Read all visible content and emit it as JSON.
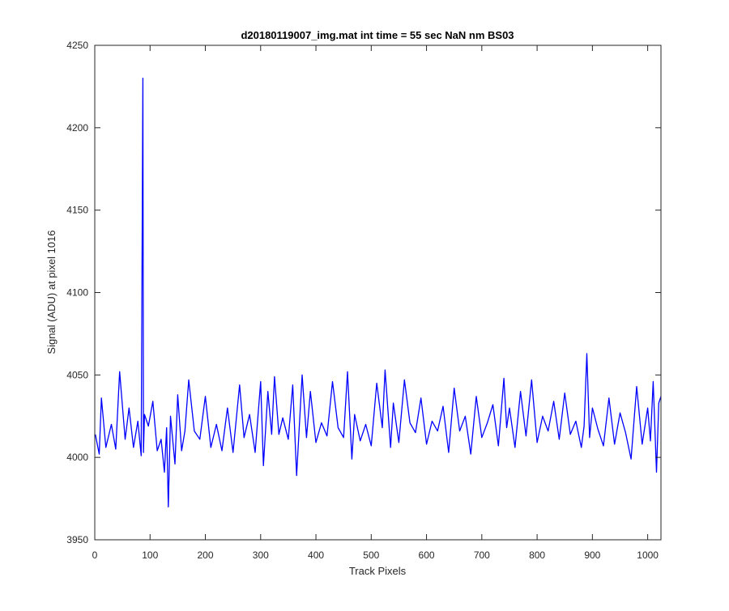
{
  "chart_data": {
    "type": "line",
    "title": "d20180119007_img.mat int time = 55 sec  NaN nm BS03",
    "xlabel": "Track Pixels",
    "ylabel": "Signal (ADU) at pixel 1016",
    "xlim": [
      0,
      1024
    ],
    "ylim": [
      3950,
      4250
    ],
    "xticks": [
      "0",
      "100",
      "200",
      "300",
      "400",
      "500",
      "600",
      "700",
      "800",
      "900",
      "1000"
    ],
    "yticks": [
      "3950",
      "4000",
      "4050",
      "4100",
      "4150",
      "4200",
      "4250"
    ],
    "grid": false,
    "line_color": "#0000ff",
    "series": [
      {
        "x": [
          1,
          8,
          12,
          20,
          30,
          38,
          45,
          55,
          62,
          70,
          78,
          84,
          87,
          88,
          90,
          97,
          105,
          113,
          120,
          126,
          130,
          133,
          137,
          145,
          150,
          157,
          163,
          170,
          180,
          190,
          200,
          210,
          220,
          230,
          240,
          250,
          262,
          270,
          280,
          290,
          300,
          305,
          313,
          320,
          325,
          333,
          340,
          350,
          358,
          365,
          375,
          383,
          390,
          400,
          410,
          420,
          430,
          440,
          450,
          457,
          465,
          470,
          480,
          490,
          500,
          510,
          520,
          525,
          535,
          540,
          550,
          560,
          570,
          580,
          590,
          600,
          610,
          620,
          630,
          640,
          650,
          660,
          670,
          680,
          690,
          700,
          710,
          720,
          730,
          740,
          745,
          750,
          760,
          770,
          780,
          790,
          800,
          810,
          820,
          830,
          840,
          850,
          860,
          870,
          880,
          885,
          890,
          895,
          900,
          910,
          920,
          930,
          940,
          950,
          960,
          970,
          980,
          990,
          1000,
          1005,
          1010,
          1016,
          1020,
          1024
        ],
        "y": [
          4014,
          4002,
          4036,
          4006,
          4020,
          4005,
          4052,
          4011,
          4030,
          4006,
          4022,
          4001,
          4230,
          4003,
          4026,
          4019,
          4034,
          4004,
          4011,
          3991,
          4018,
          3970,
          4025,
          3996,
          4038,
          4004,
          4016,
          4047,
          4016,
          4011,
          4037,
          4006,
          4020,
          4004,
          4030,
          4003,
          4044,
          4012,
          4026,
          4003,
          4046,
          3995,
          4040,
          4014,
          4049,
          4014,
          4024,
          4011,
          4044,
          3989,
          4050,
          4012,
          4040,
          4009,
          4021,
          4013,
          4046,
          4018,
          4012,
          4052,
          3999,
          4026,
          4010,
          4020,
          4007,
          4045,
          4018,
          4053,
          4006,
          4033,
          4009,
          4047,
          4021,
          4015,
          4036,
          4008,
          4022,
          4016,
          4031,
          4003,
          4042,
          4016,
          4025,
          4002,
          4037,
          4012,
          4021,
          4032,
          4007,
          4048,
          4018,
          4030,
          4006,
          4040,
          4013,
          4047,
          4009,
          4025,
          4016,
          4034,
          4011,
          4039,
          4014,
          4022,
          4006,
          4019,
          4063,
          4012,
          4030,
          4017,
          4007,
          4036,
          4008,
          4027,
          4015,
          3999,
          4043,
          4008,
          4030,
          4010,
          4046,
          3991,
          4033,
          4037
        ]
      }
    ]
  }
}
